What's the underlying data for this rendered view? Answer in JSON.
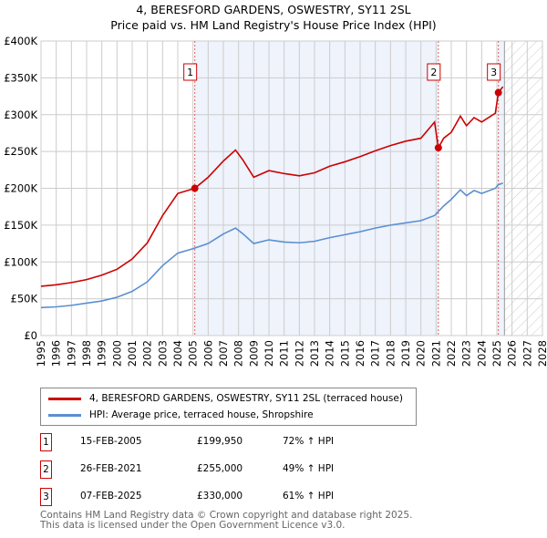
{
  "chart_data": {
    "type": "line",
    "title": "4, BERESFORD GARDENS, OSWESTRY, SY11 2SL",
    "subtitle": "Price paid vs. HM Land Registry's House Price Index (HPI)",
    "xlim": [
      1995,
      2028
    ],
    "ylim": [
      0,
      400000
    ],
    "x_ticks": [
      "1995",
      "1996",
      "1997",
      "1998",
      "1999",
      "2000",
      "2001",
      "2002",
      "2003",
      "2004",
      "2005",
      "2006",
      "2007",
      "2008",
      "2009",
      "2010",
      "2011",
      "2012",
      "2013",
      "2014",
      "2015",
      "2016",
      "2017",
      "2018",
      "2019",
      "2020",
      "2021",
      "2022",
      "2023",
      "2024",
      "2025",
      "2026",
      "2027",
      "2028"
    ],
    "y_ticks": [
      "£0",
      "£50K",
      "£100K",
      "£150K",
      "£200K",
      "£250K",
      "£300K",
      "£350K",
      "£400K"
    ],
    "grid": true,
    "series": [
      {
        "name": "4, BERESFORD GARDENS, OSWESTRY, SY11 2SL (terraced house)",
        "color": "#cc0000",
        "x": [
          1995,
          1996,
          1997,
          1998,
          1999,
          2000,
          2001,
          2002,
          2003,
          2004,
          2005.12,
          2006,
          2007,
          2007.8,
          2008.3,
          2009,
          2010,
          2011,
          2012,
          2013,
          2014,
          2015,
          2016,
          2017,
          2018,
          2019,
          2020,
          2020.9,
          2021.15,
          2021.5,
          2022,
          2022.6,
          2023,
          2023.5,
          2024,
          2024.9,
          2025.1,
          2025.4
        ],
        "y": [
          67000,
          69000,
          72000,
          76000,
          82000,
          90000,
          104000,
          126000,
          163000,
          193000,
          199950,
          215000,
          237000,
          252000,
          238000,
          215000,
          224000,
          220000,
          217000,
          221000,
          230000,
          236000,
          243000,
          251000,
          258000,
          264000,
          268000,
          290000,
          255000,
          268000,
          276000,
          298000,
          285000,
          296000,
          290000,
          302000,
          330000,
          338000
        ]
      },
      {
        "name": "HPI: Average price, terraced house, Shropshire",
        "color": "#5b8fd0",
        "x": [
          1995,
          1996,
          1997,
          1998,
          1999,
          2000,
          2001,
          2002,
          2003,
          2004,
          2005,
          2006,
          2007,
          2007.8,
          2008.3,
          2009,
          2010,
          2011,
          2012,
          2013,
          2014,
          2015,
          2016,
          2017,
          2018,
          2019,
          2020,
          2020.9,
          2021.5,
          2022,
          2022.6,
          2023,
          2023.5,
          2024,
          2024.9,
          2025.1,
          2025.4
        ],
        "y": [
          38000,
          39000,
          41000,
          44000,
          47000,
          52000,
          60000,
          73000,
          95000,
          112000,
          118000,
          125000,
          138000,
          146000,
          138000,
          125000,
          130000,
          127000,
          126000,
          128000,
          133000,
          137000,
          141000,
          146000,
          150000,
          153000,
          156000,
          163000,
          176000,
          185000,
          198000,
          190000,
          197000,
          193000,
          200000,
          205000,
          207000
        ]
      }
    ],
    "sales": [
      {
        "id": "1",
        "date": "15-FEB-2005",
        "price": "£199,950",
        "hpi": "72% ↑ HPI",
        "x": 2005.12,
        "y": 199950
      },
      {
        "id": "2",
        "date": "26-FEB-2021",
        "price": "£255,000",
        "hpi": "49% ↑ HPI",
        "x": 2021.15,
        "y": 255000
      },
      {
        "id": "3",
        "date": "07-FEB-2025",
        "price": "£330,000",
        "hpi": "61% ↑ HPI",
        "x": 2025.1,
        "y": 330000
      }
    ],
    "forecast_start": 2025.5
  },
  "footer": [
    "Contains HM Land Registry data © Crown copyright and database right 2025.",
    "This data is licensed under the Open Government Licence v3.0."
  ]
}
